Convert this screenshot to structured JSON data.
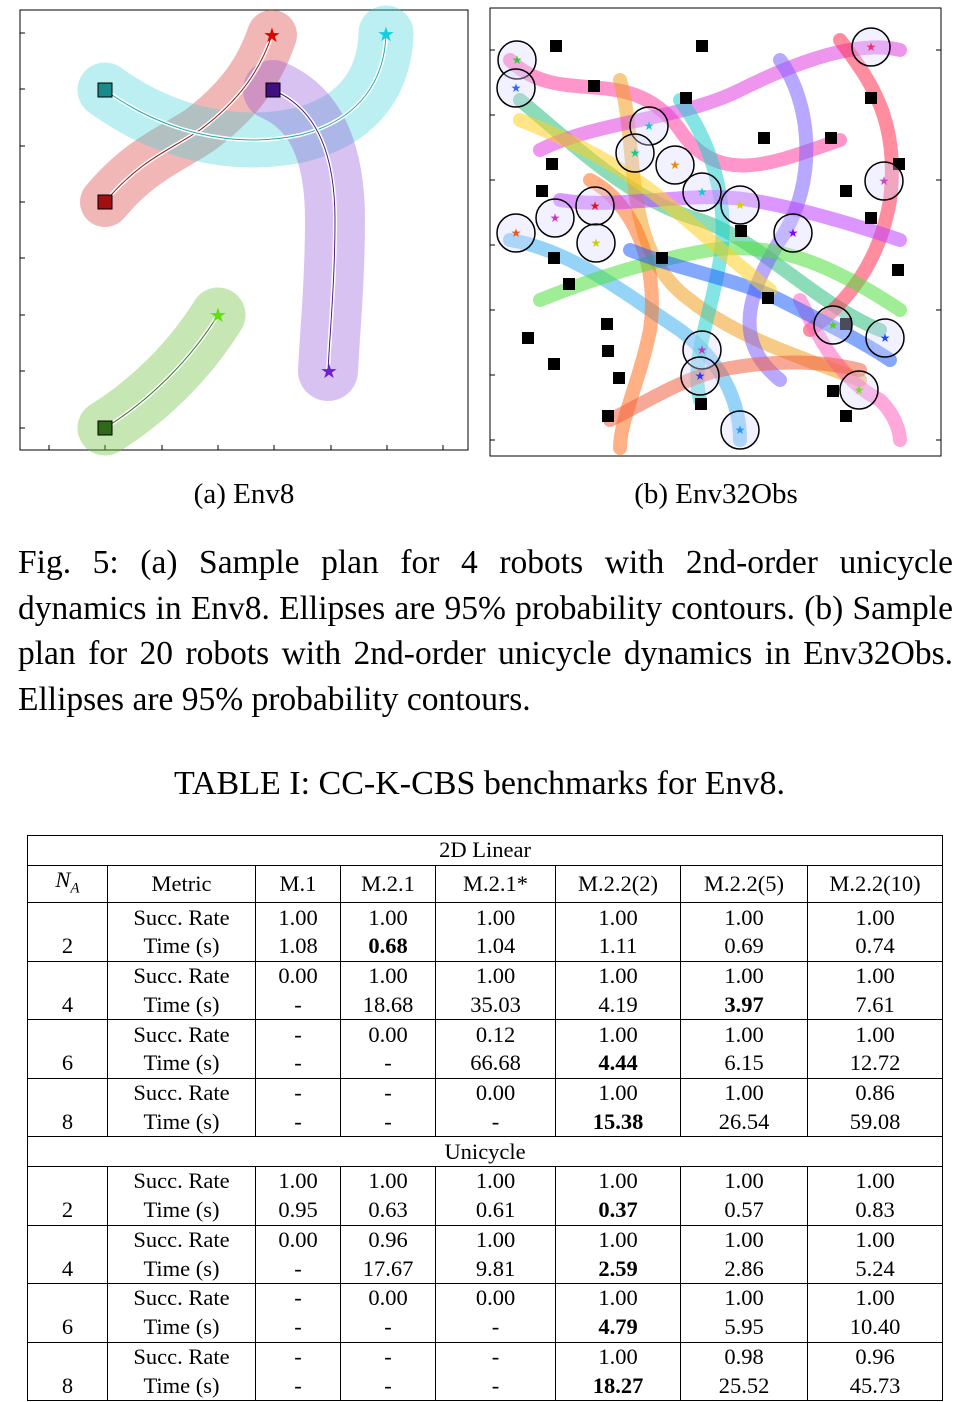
{
  "subcaption_a": "(a)  Env8",
  "subcaption_b": "(b)  Env32Obs",
  "caption": "Fig. 5: (a) Sample plan for 4 robots with 2nd-order unicycle dynamics in Env8. Ellipses are 95% probability contours. (b) Sample plan for 20 robots with 2nd-order unicycle dynamics in Env32Obs. Ellipses are 95% probability contours.",
  "table_title": "TABLE I: CC-K-CBS benchmarks for Env8.",
  "table": {
    "header_na": "N",
    "header_na_sub": "A",
    "columns": [
      "Metric",
      "M.1",
      "M.2.1",
      "M.2.1*",
      "M.2.2(2)",
      "M.2.2(5)",
      "M.2.2(10)"
    ],
    "sections": [
      {
        "title": "2D Linear",
        "groups": [
          {
            "n": "2",
            "rows": [
              {
                "metric": "Succ. Rate",
                "cells": [
                  "1.00",
                  "1.00",
                  "1.00",
                  "1.00",
                  "1.00",
                  "1.00"
                ],
                "bold": []
              },
              {
                "metric": "Time (s)",
                "cells": [
                  "1.08",
                  "0.68",
                  "1.04",
                  "1.11",
                  "0.69",
                  "0.74"
                ],
                "bold": [
                  1
                ]
              }
            ]
          },
          {
            "n": "4",
            "rows": [
              {
                "metric": "Succ. Rate",
                "cells": [
                  "0.00",
                  "1.00",
                  "1.00",
                  "1.00",
                  "1.00",
                  "1.00"
                ],
                "bold": []
              },
              {
                "metric": "Time (s)",
                "cells": [
                  "-",
                  "18.68",
                  "35.03",
                  "4.19",
                  "3.97",
                  "7.61"
                ],
                "bold": [
                  4
                ]
              }
            ]
          },
          {
            "n": "6",
            "rows": [
              {
                "metric": "Succ. Rate",
                "cells": [
                  "-",
                  "0.00",
                  "0.12",
                  "1.00",
                  "1.00",
                  "1.00"
                ],
                "bold": []
              },
              {
                "metric": "Time (s)",
                "cells": [
                  "-",
                  "-",
                  "66.68",
                  "4.44",
                  "6.15",
                  "12.72"
                ],
                "bold": [
                  3
                ]
              }
            ]
          },
          {
            "n": "8",
            "rows": [
              {
                "metric": "Succ. Rate",
                "cells": [
                  "-",
                  "-",
                  "0.00",
                  "1.00",
                  "1.00",
                  "0.86"
                ],
                "bold": []
              },
              {
                "metric": "Time (s)",
                "cells": [
                  "-",
                  "-",
                  "-",
                  "15.38",
                  "26.54",
                  "59.08"
                ],
                "bold": [
                  3
                ]
              }
            ]
          }
        ]
      },
      {
        "title": "Unicycle",
        "groups": [
          {
            "n": "2",
            "rows": [
              {
                "metric": "Succ. Rate",
                "cells": [
                  "1.00",
                  "1.00",
                  "1.00",
                  "1.00",
                  "1.00",
                  "1.00"
                ],
                "bold": []
              },
              {
                "metric": "Time (s)",
                "cells": [
                  "0.95",
                  "0.63",
                  "0.61",
                  "0.37",
                  "0.57",
                  "0.83"
                ],
                "bold": [
                  3
                ]
              }
            ]
          },
          {
            "n": "4",
            "rows": [
              {
                "metric": "Succ. Rate",
                "cells": [
                  "0.00",
                  "0.96",
                  "1.00",
                  "1.00",
                  "1.00",
                  "1.00"
                ],
                "bold": []
              },
              {
                "metric": "Time (s)",
                "cells": [
                  "-",
                  "17.67",
                  "9.81",
                  "2.59",
                  "2.86",
                  "5.24"
                ],
                "bold": [
                  3
                ]
              }
            ]
          },
          {
            "n": "6",
            "rows": [
              {
                "metric": "Succ. Rate",
                "cells": [
                  "-",
                  "0.00",
                  "0.00",
                  "1.00",
                  "1.00",
                  "1.00"
                ],
                "bold": []
              },
              {
                "metric": "Time (s)",
                "cells": [
                  "-",
                  "-",
                  "-",
                  "4.79",
                  "5.95",
                  "10.40"
                ],
                "bold": [
                  3
                ]
              }
            ]
          },
          {
            "n": "8",
            "rows": [
              {
                "metric": "Succ. Rate",
                "cells": [
                  "-",
                  "-",
                  "-",
                  "1.00",
                  "0.98",
                  "0.96"
                ],
                "bold": []
              },
              {
                "metric": "Time (s)",
                "cells": [
                  "-",
                  "-",
                  "-",
                  "18.27",
                  "25.52",
                  "45.73"
                ],
                "bold": [
                  3
                ]
              }
            ]
          }
        ]
      }
    ]
  }
}
